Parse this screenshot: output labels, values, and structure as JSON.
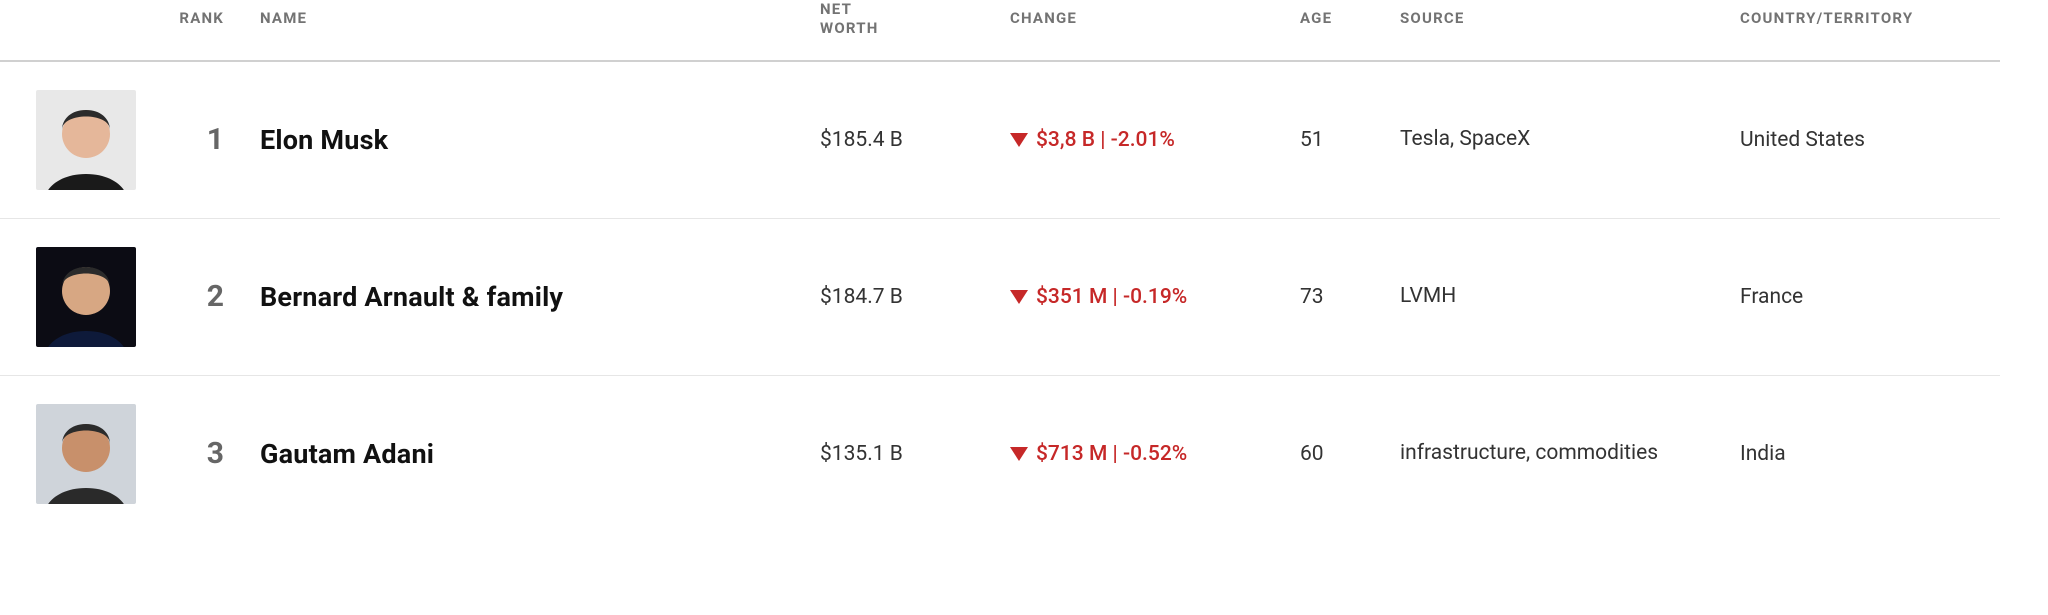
{
  "columns": {
    "rank": "RANK",
    "name": "NAME",
    "net_worth": "NET\nWORTH",
    "change": "CHANGE",
    "age": "AGE",
    "source": "SOURCE",
    "country": "COUNTRY/TERRITORY"
  },
  "change_down_color": "#c62828",
  "rows": [
    {
      "rank": "1",
      "name": "Elon Musk",
      "net_worth": "$185.4 B",
      "change_direction": "down",
      "change_text": "$3,8 B | -2.01%",
      "age": "51",
      "source": "Tesla, SpaceX",
      "country": "United States"
    },
    {
      "rank": "2",
      "name": "Bernard Arnault & family",
      "net_worth": "$184.7 B",
      "change_direction": "down",
      "change_text": "$351 M | -0.19%",
      "age": "73",
      "source": "LVMH",
      "country": "France"
    },
    {
      "rank": "3",
      "name": "Gautam Adani",
      "net_worth": "$135.1 B",
      "change_direction": "down",
      "change_text": "$713 M | -0.52%",
      "age": "60",
      "source": "infrastructure, commodities",
      "country": "India"
    }
  ]
}
